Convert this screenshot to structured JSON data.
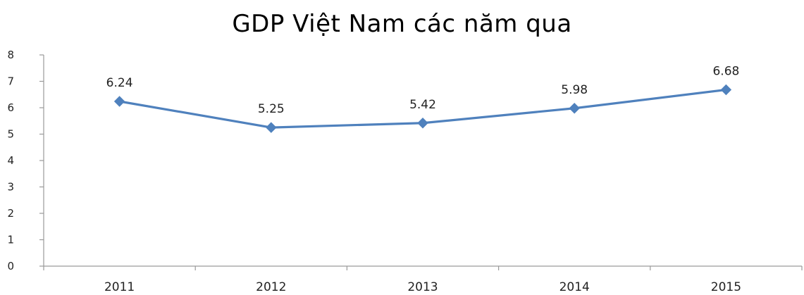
{
  "chart_data": {
    "type": "line",
    "title": "GDP Việt Nam các năm qua",
    "categories": [
      "2011",
      "2012",
      "2013",
      "2014",
      "2015"
    ],
    "series": [
      {
        "values": [
          6.24,
          5.25,
          5.42,
          5.98,
          6.68
        ],
        "color": "#4f81bd",
        "marker": "diamond"
      }
    ],
    "data_labels": [
      "6.24",
      "5.25",
      "5.42",
      "5.98",
      "6.68"
    ],
    "yticks": [
      "0",
      "1",
      "2",
      "3",
      "4",
      "5",
      "6",
      "7",
      "8"
    ],
    "ylim": [
      0,
      8
    ],
    "grid": false,
    "legend": "none"
  }
}
